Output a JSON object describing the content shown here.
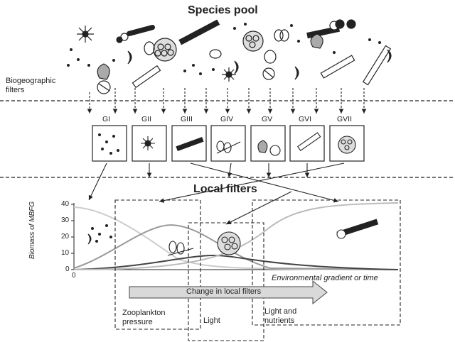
{
  "title_species_pool": "Species pool",
  "biogeographic_filters": [
    "Biogeographic",
    "filters"
  ],
  "title_local_filters": "Local filters",
  "groups": [
    "GI",
    "GII",
    "GIII",
    "GIV",
    "GV",
    "GVI",
    "GVII"
  ],
  "y_axis_label": "Biomass of MBFG",
  "y_ticks": [
    "40",
    "30",
    "20",
    "10",
    "0"
  ],
  "x_zero": "0",
  "x_axis_label": "Environmental gradient or time",
  "arrow_label": "Change in local filters",
  "filter_zooplankton": [
    "Zooplankton",
    "pressure"
  ],
  "filter_light": "Light",
  "filter_light_nutrients": [
    "Light and",
    "nutrients"
  ]
}
